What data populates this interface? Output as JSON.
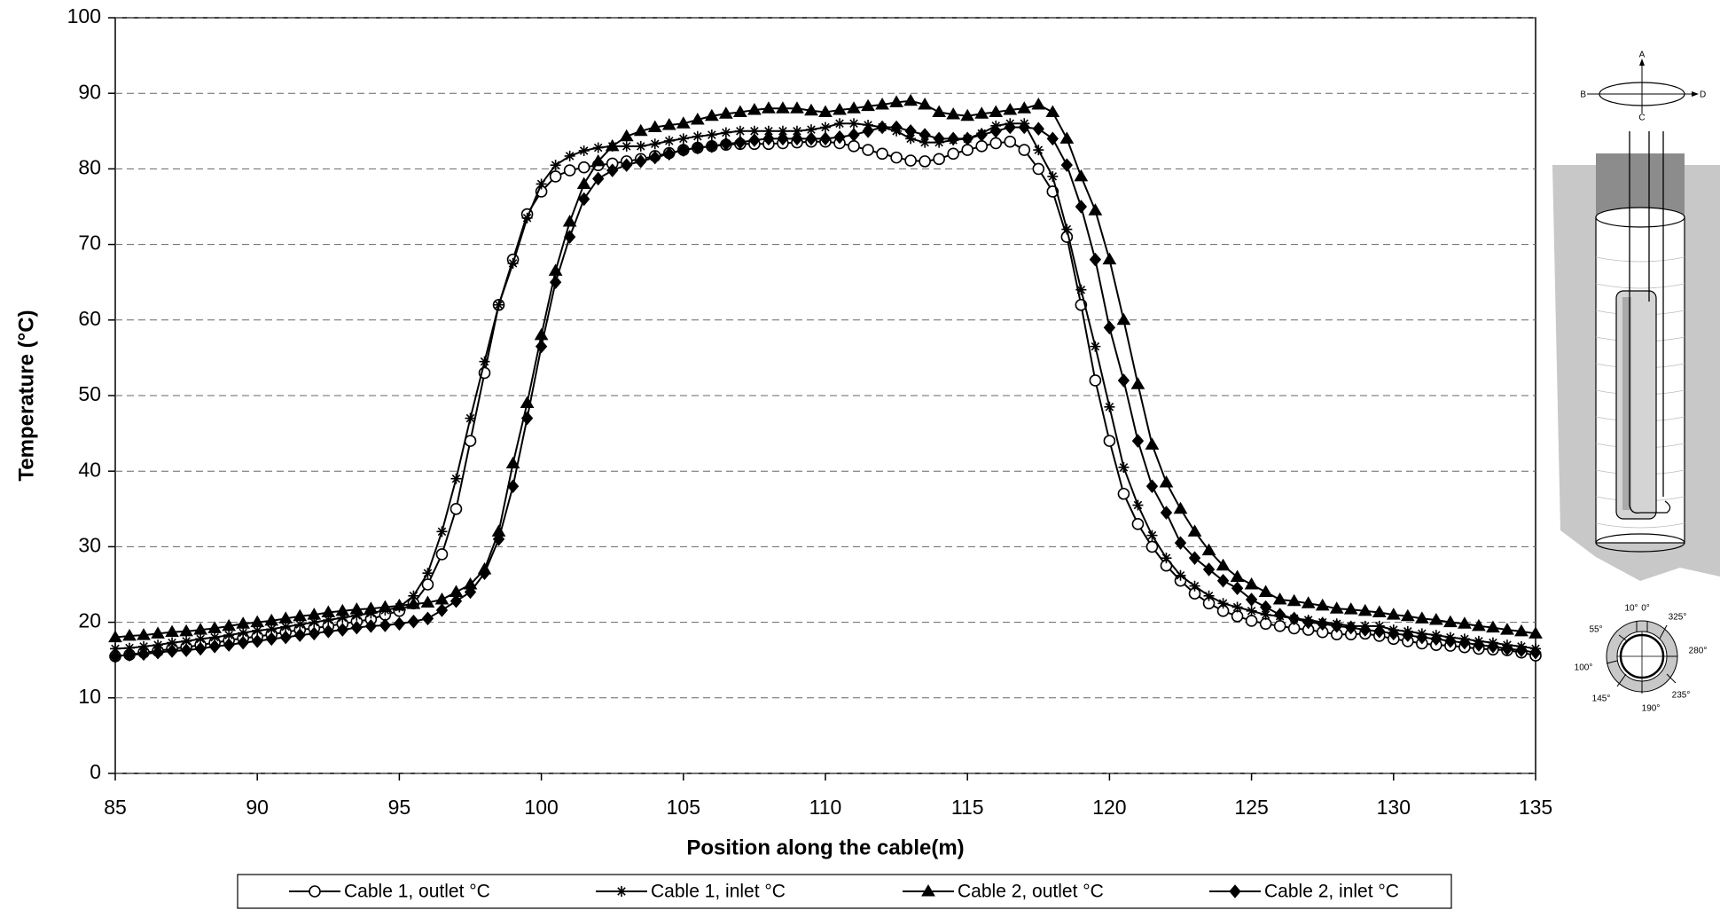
{
  "chart_data": {
    "type": "line",
    "x_label": "Position along the cable(m)",
    "y_label": "Temperature (°C)",
    "xlim": [
      85,
      135
    ],
    "xticks": [
      85,
      90,
      95,
      100,
      105,
      110,
      115,
      120,
      125,
      130,
      135
    ],
    "ylim": [
      0,
      100
    ],
    "yticks": [
      0,
      10,
      20,
      30,
      40,
      50,
      60,
      70,
      80,
      90,
      100
    ],
    "grid": true,
    "legend": "bottom",
    "x": [
      85,
      85.5,
      86,
      86.5,
      87,
      87.5,
      88,
      88.5,
      89,
      89.5,
      90,
      90.5,
      91,
      91.5,
      92,
      92.5,
      93,
      93.5,
      94,
      94.5,
      95,
      95.5,
      96,
      96.5,
      97,
      97.5,
      98,
      98.5,
      99,
      99.5,
      100,
      100.5,
      101,
      101.5,
      102,
      102.5,
      103,
      103.5,
      104,
      104.5,
      105,
      105.5,
      106,
      106.5,
      107,
      107.5,
      108,
      108.5,
      109,
      109.5,
      110,
      110.5,
      111,
      111.5,
      112,
      112.5,
      113,
      113.5,
      114,
      114.5,
      115,
      115.5,
      116,
      116.5,
      117,
      117.5,
      118,
      118.5,
      119,
      119.5,
      120,
      120.5,
      121,
      121.5,
      122,
      122.5,
      123,
      123.5,
      124,
      124.5,
      125,
      125.5,
      126,
      126.5,
      127,
      127.5,
      128,
      128.5,
      129,
      129.5,
      130,
      130.5,
      131,
      131.5,
      132,
      132.5,
      133,
      133.5,
      134,
      134.5,
      135
    ],
    "series": [
      {
        "name": "Cable 1, outlet °C",
        "color": "#000000",
        "marker": "circle",
        "marker_fill": "#ffffff",
        "values": [
          15.5,
          15.7,
          16,
          16.2,
          16.5,
          16.7,
          17,
          17.3,
          17.6,
          17.9,
          18.1,
          18.4,
          18.7,
          19,
          19.2,
          19.5,
          19.8,
          20.1,
          20.4,
          21,
          21.5,
          22.5,
          25,
          29,
          35,
          44,
          53,
          62,
          68,
          74,
          77,
          79,
          79.8,
          80.2,
          80.5,
          80.7,
          81,
          81.3,
          81.7,
          82.1,
          82.5,
          82.8,
          83,
          83.2,
          83.3,
          83.3,
          83.3,
          83.4,
          83.5,
          83.6,
          83.6,
          83.4,
          83,
          82.5,
          82,
          81.5,
          81.1,
          81,
          81.3,
          82,
          82.5,
          83,
          83.4,
          83.6,
          82.5,
          80,
          77,
          71,
          62,
          52,
          44,
          37,
          33,
          30,
          27.5,
          25.5,
          23.8,
          22.5,
          21.5,
          20.8,
          20.2,
          19.8,
          19.5,
          19.2,
          19,
          18.7,
          18.4,
          18.4,
          18.5,
          18.2,
          17.8,
          17.5,
          17.2,
          17,
          16.9,
          16.7,
          16.5,
          16.4,
          16.3,
          16,
          15.6
        ]
      },
      {
        "name": "Cable 1, inlet °C",
        "color": "#000000",
        "marker": "star",
        "marker_fill": "#000000",
        "values": [
          16.5,
          16.6,
          16.8,
          17,
          17.3,
          17.5,
          17.8,
          18,
          18.3,
          18.6,
          18.9,
          19.1,
          19.4,
          19.7,
          20,
          20.3,
          20.6,
          20.9,
          21.2,
          21.6,
          22,
          23.5,
          26.5,
          32,
          39,
          47,
          54.5,
          62,
          67.5,
          73.5,
          78,
          80.5,
          81.7,
          82.4,
          82.8,
          83,
          83,
          83,
          83.3,
          83.7,
          84,
          84.3,
          84.5,
          84.8,
          85,
          85,
          85,
          85,
          85,
          85.2,
          85.5,
          86,
          86,
          85.8,
          85.5,
          85,
          84,
          83.5,
          83.5,
          83.8,
          84,
          84.7,
          85.7,
          86,
          86,
          82.5,
          79,
          72,
          64,
          56.5,
          48.5,
          40.5,
          35.5,
          31.5,
          28.5,
          26.2,
          24.8,
          23.5,
          22.5,
          22,
          21.5,
          21,
          20.8,
          20.5,
          20.3,
          20,
          19.8,
          19.5,
          19.5,
          19.5,
          19,
          18.8,
          18.5,
          18.3,
          18,
          17.8,
          17.5,
          17.3,
          17,
          16.8,
          16.5
        ]
      },
      {
        "name": "Cable 2, outlet °C",
        "color": "#000000",
        "marker": "triangle",
        "marker_fill": "#000000",
        "values": [
          18,
          18.2,
          18.3,
          18.5,
          18.7,
          18.8,
          19,
          19.2,
          19.5,
          19.8,
          20,
          20.2,
          20.5,
          20.8,
          21,
          21.3,
          21.5,
          21.7,
          21.8,
          22,
          22.2,
          22.4,
          22.6,
          23,
          24,
          25,
          27,
          32,
          41,
          49,
          58,
          66.5,
          73,
          78,
          81,
          83,
          84.3,
          85,
          85.5,
          85.8,
          86,
          86.5,
          87,
          87.3,
          87.5,
          87.8,
          88,
          88,
          88,
          87.7,
          87.5,
          87.8,
          88,
          88.3,
          88.5,
          88.8,
          89,
          88.5,
          87.5,
          87.2,
          87,
          87.3,
          87.5,
          87.8,
          88,
          88.5,
          87.5,
          84,
          79,
          74.5,
          68,
          60,
          51.5,
          43.5,
          38.5,
          35,
          32,
          29.5,
          27.5,
          26,
          25,
          24,
          23,
          22.8,
          22.5,
          22.2,
          21.8,
          21.7,
          21.5,
          21.3,
          21,
          20.8,
          20.5,
          20.3,
          20,
          19.8,
          19.5,
          19.3,
          19,
          18.8,
          18.5
        ]
      },
      {
        "name": "Cable 2, inlet °C",
        "color": "#000000",
        "marker": "diamond",
        "marker_fill": "#000000",
        "values": [
          15.5,
          15.7,
          15.8,
          16,
          16.2,
          16.3,
          16.5,
          16.8,
          17,
          17.3,
          17.5,
          17.8,
          18,
          18.3,
          18.5,
          18.8,
          19,
          19.3,
          19.5,
          19.6,
          19.8,
          20.1,
          20.5,
          21.6,
          22.8,
          24,
          26.5,
          31,
          38,
          47,
          56.5,
          65,
          71,
          76,
          78.7,
          79.8,
          80.5,
          81,
          81.5,
          82,
          82.5,
          82.8,
          83,
          83.3,
          83.5,
          83.8,
          84,
          84,
          84,
          84,
          84,
          84.2,
          84.5,
          85,
          85.5,
          85.5,
          85,
          84.5,
          84,
          84,
          84,
          84.5,
          85,
          85.5,
          85.5,
          85.3,
          84,
          80.5,
          75,
          68,
          59,
          52,
          44,
          38,
          34.5,
          30.5,
          28.5,
          27,
          25.5,
          24.5,
          23,
          22,
          21,
          20.5,
          20,
          19.8,
          19.5,
          19.3,
          19,
          18.8,
          18.5,
          18.3,
          18,
          17.8,
          17.5,
          17.3,
          17,
          16.8,
          16.5,
          16.3,
          16
        ]
      }
    ]
  },
  "inset": {
    "labels": [
      "A",
      "B",
      "C",
      "D",
      "10°",
      "0°",
      "325°",
      "55°",
      "280°",
      "100°",
      "235°",
      "145°",
      "190°"
    ]
  }
}
